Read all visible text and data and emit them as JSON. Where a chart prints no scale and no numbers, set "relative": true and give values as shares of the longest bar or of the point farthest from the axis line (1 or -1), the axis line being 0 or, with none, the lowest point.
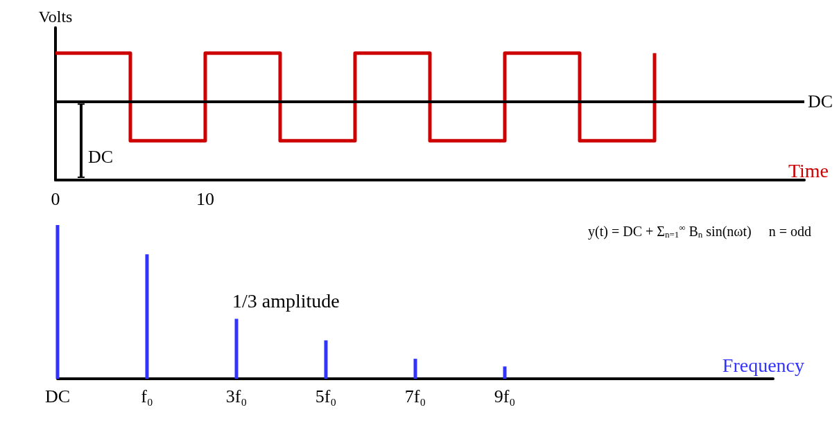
{
  "chart_data": [
    {
      "type": "step",
      "ylabel": "Volts",
      "xlabel": "Time",
      "relative": true,
      "x": [
        0,
        5,
        10,
        15,
        20,
        25,
        30,
        35,
        40
      ],
      "xlim": [
        0,
        50
      ],
      "xticks": [
        0,
        10
      ],
      "series": [
        {
          "color": "#cc0000",
          "values": [
            1,
            0.31,
            1,
            0.31,
            1,
            0.31,
            1,
            0.31,
            1
          ]
        }
      ],
      "ref_lines": [
        {
          "axis": "y",
          "value": 0.62,
          "label": "DC",
          "color": "#000000"
        }
      ],
      "annotations": [
        "DC"
      ]
    },
    {
      "type": "bar",
      "xlabel": "Frequency",
      "relative": true,
      "categories": [
        "DC",
        "f₀",
        "3f₀",
        "5f₀",
        "7f₀",
        "9f₀",
        null,
        null,
        null
      ],
      "series": [
        {
          "color": "#3333ff",
          "values": [
            1,
            0.81,
            0.39,
            0.25,
            0.13,
            0.08,
            null,
            null,
            null
          ]
        }
      ],
      "annotations": [
        {
          "text": "1/3 amplitude",
          "x": "3f₀",
          "y": 0.39
        },
        "y(t) = DC + Σ$_{n=1}$$^{∞}$ B$_{n}$ sin(nωt)     n = odd"
      ]
    }
  ]
}
